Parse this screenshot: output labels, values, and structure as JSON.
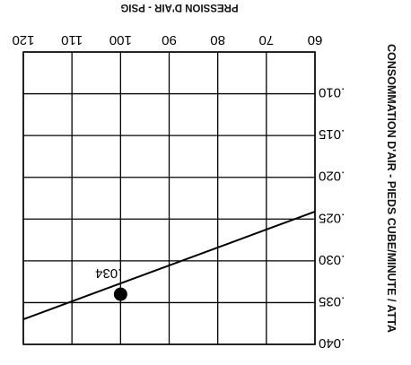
{
  "chart_data": {
    "type": "line",
    "xlabel": "PRESSION D'AIR - PSIG",
    "ylabel": "CONSOMMATION D'AIR - PIEDS CUBE/MINUTE / ATTA",
    "x_ticks": [
      "60",
      "70",
      "80",
      "90",
      "100",
      "110",
      "120"
    ],
    "y_ticks": [
      ".010",
      ".015",
      ".020",
      ".025",
      ".030",
      ".035",
      ".040"
    ],
    "xlim": [
      60,
      120
    ],
    "ylim": [
      0.005,
      0.04
    ],
    "x_reversed": true,
    "figure_rotated_180": true,
    "grid": true,
    "series": [
      {
        "x": [
          60,
          120
        ],
        "y": [
          0.0241,
          0.037
        ]
      }
    ],
    "points": [
      {
        "x": 100,
        "y": 0.034,
        "label": ".034"
      }
    ]
  }
}
